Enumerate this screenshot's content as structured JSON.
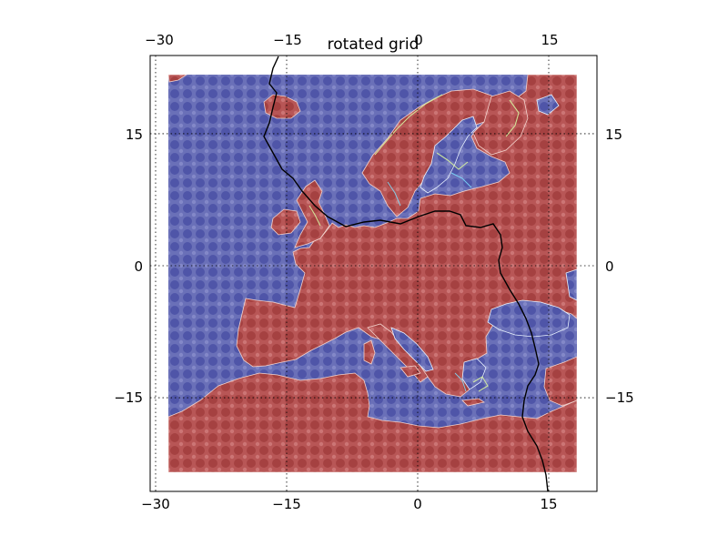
{
  "title": "rotated grid",
  "projection": "rotated-pole",
  "grid": true,
  "grid_style": "dotted",
  "colormap": "jet",
  "field_pattern": "checkered-sine-on-land-sea-mask",
  "land_color": "#b04a4a",
  "sea_color": "#5a60ae",
  "border_color": "#000000",
  "x_tick_labels_top": [
    "−30",
    "−15",
    "0",
    "15"
  ],
  "x_tick_labels_bottom": [
    "−30",
    "−15",
    "0",
    "15"
  ],
  "y_tick_labels_left": [
    "15",
    "0",
    "−15"
  ],
  "y_tick_labels_right": [
    "15",
    "0",
    "−15"
  ],
  "meridians": [
    -30,
    -15,
    0,
    15
  ],
  "parallels": [
    15,
    0,
    -15
  ]
}
